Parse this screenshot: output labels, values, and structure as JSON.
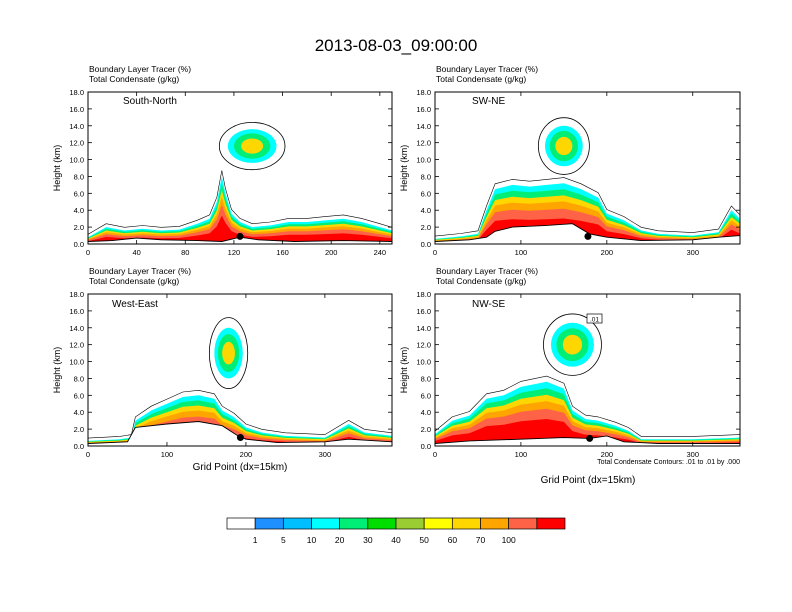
{
  "main_title": "2013-08-03_09:00:00",
  "chart_data": [
    {
      "type": "heatmap",
      "panel": "South-North",
      "label_line1": "Boundary Layer Tracer    (%)",
      "label_line2": "Total Condensate   (g/kg)",
      "ylabel": "Height (km)",
      "xlabel": "",
      "xlim": [
        0,
        250
      ],
      "ylim": [
        0,
        18
      ],
      "xticks": [
        0,
        40,
        80,
        120,
        160,
        200,
        240
      ],
      "yticks": [
        0.0,
        2.0,
        4.0,
        6.0,
        8.0,
        10.0,
        12.0,
        14.0,
        16.0,
        18.0
      ],
      "tracer_top_km": [
        [
          0,
          0.8
        ],
        [
          5,
          1.2
        ],
        [
          15,
          2.0
        ],
        [
          30,
          1.6
        ],
        [
          45,
          1.8
        ],
        [
          60,
          1.6
        ],
        [
          75,
          1.7
        ],
        [
          90,
          2.4
        ],
        [
          100,
          3.0
        ],
        [
          106,
          5.0
        ],
        [
          110,
          8.0
        ],
        [
          113,
          6.0
        ],
        [
          118,
          3.6
        ],
        [
          125,
          2.6
        ],
        [
          135,
          2.0
        ],
        [
          150,
          2.2
        ],
        [
          165,
          2.6
        ],
        [
          180,
          2.6
        ],
        [
          195,
          2.8
        ],
        [
          210,
          3.0
        ],
        [
          225,
          2.6
        ],
        [
          240,
          2.0
        ],
        [
          250,
          1.6
        ]
      ],
      "terrain_km": [
        [
          0,
          0.3
        ],
        [
          20,
          0.4
        ],
        [
          40,
          0.7
        ],
        [
          60,
          0.5
        ],
        [
          90,
          0.4
        ],
        [
          110,
          0.3
        ],
        [
          125,
          0.8
        ],
        [
          140,
          0.5
        ],
        [
          170,
          0.3
        ],
        [
          210,
          0.4
        ],
        [
          250,
          0.3
        ]
      ],
      "marker_x": 125,
      "marker_km": 0.9,
      "upper_cloud": {
        "cx": 135,
        "cy": 11.6,
        "rx": 20,
        "ry": 2.0
      }
    },
    {
      "type": "heatmap",
      "panel": "SW-NE",
      "label_line1": "Boundary Layer Tracer    (%)",
      "label_line2": "Total Condensate   (g/kg)",
      "ylabel": "Height (km)",
      "xlabel": "",
      "xlim": [
        0,
        355
      ],
      "ylim": [
        0,
        18
      ],
      "xticks": [
        0,
        100,
        200,
        300
      ],
      "yticks": [
        0.0,
        2.0,
        4.0,
        6.0,
        8.0,
        10.0,
        12.0,
        14.0,
        16.0,
        18.0
      ],
      "tracer_top_km": [
        [
          0,
          0.6
        ],
        [
          30,
          0.9
        ],
        [
          50,
          1.2
        ],
        [
          60,
          4.0
        ],
        [
          70,
          6.5
        ],
        [
          90,
          7.0
        ],
        [
          110,
          6.8
        ],
        [
          130,
          7.0
        ],
        [
          150,
          7.2
        ],
        [
          170,
          6.5
        ],
        [
          190,
          5.5
        ],
        [
          200,
          3.6
        ],
        [
          220,
          2.8
        ],
        [
          240,
          1.6
        ],
        [
          260,
          1.2
        ],
        [
          300,
          1.0
        ],
        [
          330,
          1.4
        ],
        [
          345,
          4.0
        ],
        [
          355,
          3.0
        ]
      ],
      "terrain_km": [
        [
          0,
          0.3
        ],
        [
          40,
          0.5
        ],
        [
          60,
          0.8
        ],
        [
          70,
          1.5
        ],
        [
          90,
          2.0
        ],
        [
          130,
          2.2
        ],
        [
          160,
          2.4
        ],
        [
          180,
          1.2
        ],
        [
          200,
          0.8
        ],
        [
          240,
          0.4
        ],
        [
          300,
          0.5
        ],
        [
          330,
          0.8
        ],
        [
          355,
          1.0
        ]
      ],
      "marker_x": 178,
      "marker_km": 0.9,
      "upper_cloud": {
        "cx": 150,
        "cy": 11.6,
        "rx": 22,
        "ry": 2.4
      }
    },
    {
      "type": "heatmap",
      "panel": "West-East",
      "label_line1": "Boundary Layer Tracer    (%)",
      "label_line2": "Total Condensate   (g/kg)",
      "ylabel": "Height (km)",
      "xlabel": "Grid Point (dx=15km)",
      "xlim": [
        0,
        385
      ],
      "ylim": [
        0,
        18
      ],
      "xticks": [
        0,
        100,
        200,
        300
      ],
      "yticks": [
        0.0,
        2.0,
        4.0,
        6.0,
        8.0,
        10.0,
        12.0,
        14.0,
        16.0,
        18.0
      ],
      "tracer_top_km": [
        [
          0,
          0.6
        ],
        [
          40,
          0.8
        ],
        [
          55,
          1.0
        ],
        [
          60,
          3.0
        ],
        [
          80,
          4.2
        ],
        [
          100,
          5.0
        ],
        [
          120,
          5.8
        ],
        [
          140,
          6.0
        ],
        [
          160,
          5.6
        ],
        [
          170,
          4.2
        ],
        [
          185,
          3.4
        ],
        [
          200,
          2.2
        ],
        [
          220,
          1.6
        ],
        [
          250,
          1.2
        ],
        [
          300,
          1.0
        ],
        [
          330,
          2.6
        ],
        [
          350,
          1.6
        ],
        [
          385,
          1.2
        ]
      ],
      "terrain_km": [
        [
          0,
          0.3
        ],
        [
          50,
          0.5
        ],
        [
          60,
          2.2
        ],
        [
          100,
          2.6
        ],
        [
          140,
          2.9
        ],
        [
          170,
          2.4
        ],
        [
          190,
          1.2
        ],
        [
          200,
          0.8
        ],
        [
          240,
          0.4
        ],
        [
          300,
          0.5
        ],
        [
          330,
          0.8
        ],
        [
          385,
          0.5
        ]
      ],
      "marker_x": 193,
      "marker_km": 1.0,
      "upper_cloud": {
        "cx": 178,
        "cy": 11.0,
        "rx": 18,
        "ry": 3.0
      }
    },
    {
      "type": "heatmap",
      "panel": "NW-SE",
      "label_line1": "Boundary Layer Tracer    (%)",
      "label_line2": "Total Condensate   (g/kg)",
      "ylabel": "Height (km)",
      "xlabel": "Grid Point (dx=15km)",
      "contour_info": "Total Condensate Contours: .01 to .01 by .000",
      "contour_tag": ".01",
      "xlim": [
        0,
        355
      ],
      "ylim": [
        0,
        18
      ],
      "xticks": [
        0,
        100,
        200,
        300
      ],
      "yticks": [
        0.0,
        2.0,
        4.0,
        6.0,
        8.0,
        10.0,
        12.0,
        14.0,
        16.0,
        18.0
      ],
      "tracer_top_km": [
        [
          0,
          1.4
        ],
        [
          20,
          3.0
        ],
        [
          40,
          3.6
        ],
        [
          60,
          5.6
        ],
        [
          80,
          6.0
        ],
        [
          100,
          7.0
        ],
        [
          130,
          7.6
        ],
        [
          150,
          6.8
        ],
        [
          160,
          4.2
        ],
        [
          175,
          3.2
        ],
        [
          190,
          3.0
        ],
        [
          210,
          2.4
        ],
        [
          225,
          1.8
        ],
        [
          240,
          0.8
        ],
        [
          300,
          0.8
        ],
        [
          355,
          1.0
        ]
      ],
      "terrain_km": [
        [
          0,
          0.3
        ],
        [
          40,
          0.6
        ],
        [
          100,
          0.8
        ],
        [
          150,
          1.0
        ],
        [
          180,
          0.9
        ],
        [
          200,
          1.2
        ],
        [
          220,
          0.5
        ],
        [
          260,
          0.3
        ],
        [
          355,
          0.3
        ]
      ],
      "marker_x": 180,
      "marker_km": 0.9,
      "upper_cloud": {
        "cx": 160,
        "cy": 12.0,
        "rx": 25,
        "ry": 2.6
      }
    }
  ],
  "colorbar": {
    "colors": [
      "#ffffff",
      "#1e90ff",
      "#00bfff",
      "#00ffff",
      "#00ee76",
      "#00dd00",
      "#9acd32",
      "#ffff00",
      "#ffd700",
      "#ffa500",
      "#ff6347",
      "#ff0000"
    ],
    "labels": [
      "1",
      "5",
      "10",
      "20",
      "30",
      "40",
      "50",
      "60",
      "70",
      "100"
    ]
  }
}
